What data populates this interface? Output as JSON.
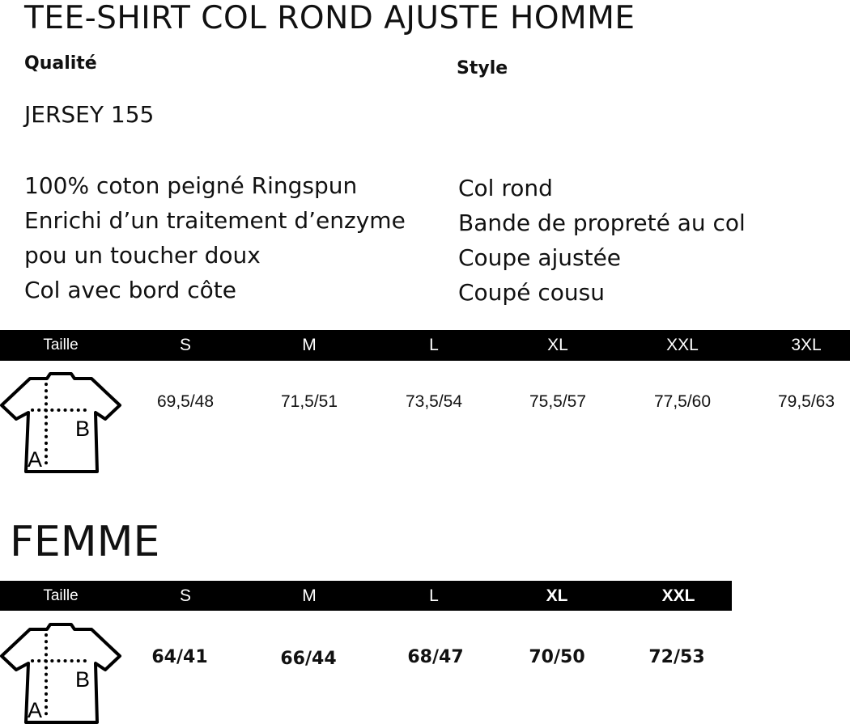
{
  "title": "TEE-SHIRT COL ROND AJUSTE HOMME",
  "quality": {
    "label": "Qualité",
    "name": "JERSEY 155",
    "lines": [
      "100% coton peigné Ringspun",
      "Enrichi d’un traitement d’enzyme",
      "pou un toucher doux",
      "Col avec bord côte"
    ]
  },
  "style": {
    "label": "Style",
    "lines": [
      "Col rond",
      "Bande de propreté au col",
      "Coupe ajustée",
      "Coupé cousu"
    ]
  },
  "homme_table": {
    "header": "Taille",
    "sizes": [
      "S",
      "M",
      "L",
      "XL",
      "XXL",
      "3XL"
    ],
    "values": [
      "69,5/48",
      "71,5/51",
      "73,5/54",
      "75,5/57",
      "77,5/60",
      "79,5/63"
    ]
  },
  "femme_title": "FEMME",
  "femme_table": {
    "header": "Taille",
    "sizes": [
      "S",
      "M",
      "L",
      "XL",
      "XXL"
    ],
    "values": [
      "64/41",
      "66/44",
      "68/47",
      "70/50",
      "72/53"
    ]
  },
  "diagram_labels": {
    "a": "A",
    "b": "B"
  }
}
